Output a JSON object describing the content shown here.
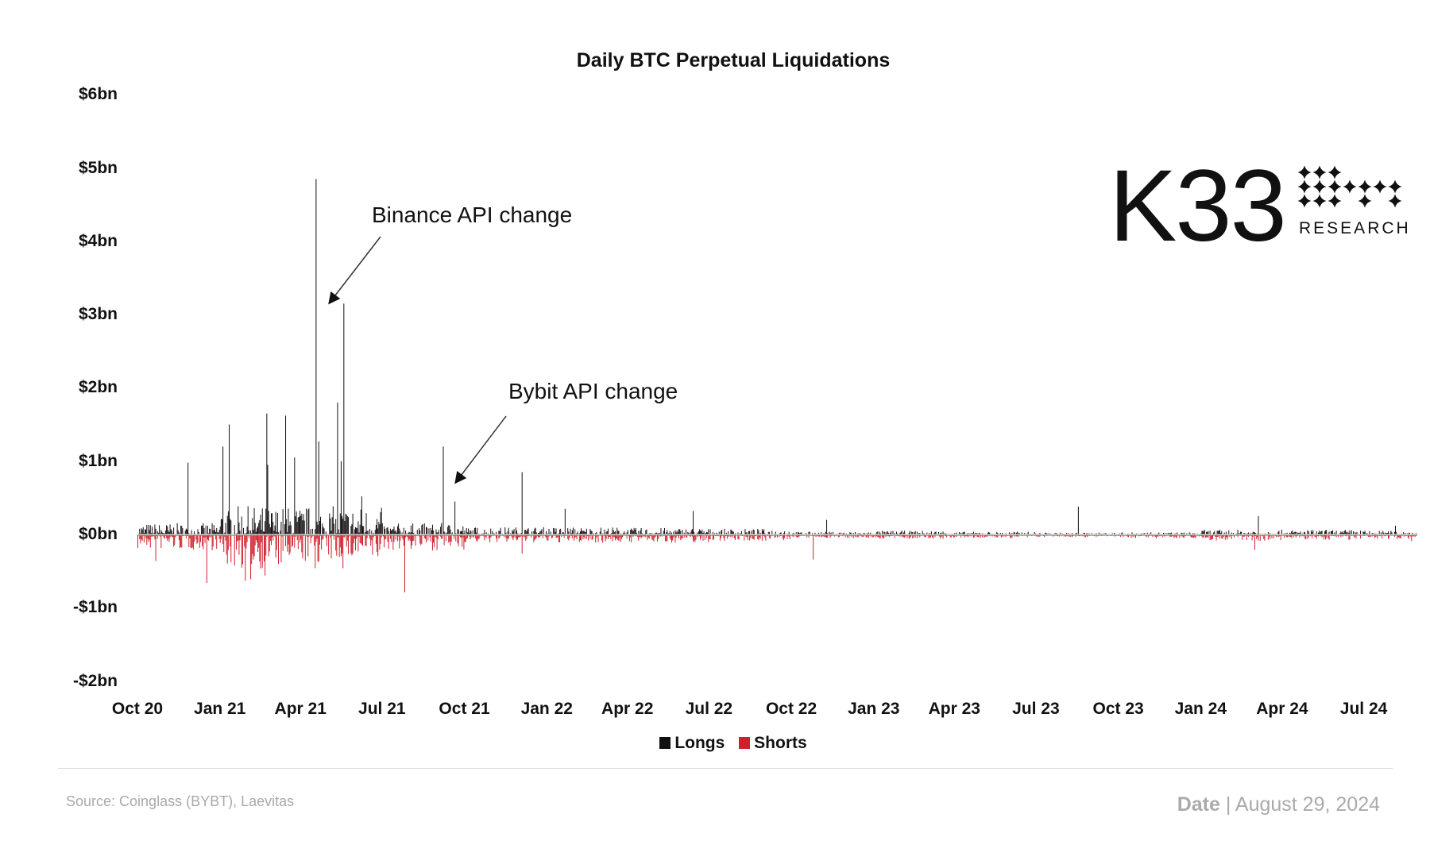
{
  "chart_data": {
    "type": "bar",
    "title": "Daily BTC Perpetual Liquidations",
    "xlabel": "",
    "ylabel": "",
    "unit": "USD billions",
    "date_range": [
      "2020-10-01",
      "2024-08-29"
    ],
    "ylim": [
      -2,
      6
    ],
    "y_ticks": [
      6,
      5,
      4,
      3,
      2,
      1,
      0,
      -1,
      -2
    ],
    "y_tick_labels": [
      "$6bn",
      "$5bn",
      "$4bn",
      "$3bn",
      "$2bn",
      "$1bn",
      "$0bn",
      "-$1bn",
      "-$2bn"
    ],
    "x_ticks": [
      "2020-10-01",
      "2021-01-01",
      "2021-04-01",
      "2021-07-01",
      "2021-10-01",
      "2022-01-01",
      "2022-04-01",
      "2022-07-01",
      "2022-10-01",
      "2023-01-01",
      "2023-04-01",
      "2023-07-01",
      "2023-10-01",
      "2024-01-01",
      "2024-04-01",
      "2024-07-01"
    ],
    "x_tick_labels": [
      "Oct 20",
      "Jan 21",
      "Apr 21",
      "Jul 21",
      "Oct 21",
      "Jan 22",
      "Apr 22",
      "Jul 22",
      "Oct 22",
      "Jan 23",
      "Apr 23",
      "Jul 23",
      "Oct 23",
      "Jan 24",
      "Apr 24",
      "Jul 24"
    ],
    "grid": false,
    "legend_position": "bottom",
    "series": [
      {
        "name": "Longs",
        "color": "#111111",
        "sign": "positive"
      },
      {
        "name": "Shorts",
        "color": "#d0202e",
        "sign": "negative"
      }
    ],
    "typical_level_by_quarter": {
      "quarters": [
        "Q4 20",
        "Q1 21",
        "Q2 21",
        "Q3 21",
        "Q4 21",
        "Q1 22",
        "Q2 22",
        "Q3 22",
        "Q4 22",
        "Q1 23",
        "Q2 23",
        "Q3 23",
        "Q4 23",
        "Q1 24",
        "Q2 24",
        "Q3 24"
      ],
      "longs": [
        0.06,
        0.15,
        0.15,
        0.06,
        0.04,
        0.04,
        0.035,
        0.03,
        0.015,
        0.02,
        0.015,
        0.01,
        0.012,
        0.025,
        0.025,
        0.02
      ],
      "shorts": [
        0.08,
        0.18,
        0.15,
        0.08,
        0.04,
        0.04,
        0.04,
        0.03,
        0.015,
        0.02,
        0.015,
        0.01,
        0.015,
        0.03,
        0.025,
        0.02
      ]
    },
    "notable_longs": [
      {
        "date": "2020-11-26",
        "value": 0.98
      },
      {
        "date": "2021-01-04",
        "value": 1.2
      },
      {
        "date": "2021-01-11",
        "value": 1.5
      },
      {
        "date": "2021-02-22",
        "value": 1.65
      },
      {
        "date": "2021-02-23",
        "value": 0.95
      },
      {
        "date": "2021-03-15",
        "value": 1.62
      },
      {
        "date": "2021-03-25",
        "value": 1.05
      },
      {
        "date": "2021-04-18",
        "value": 4.85
      },
      {
        "date": "2021-04-21",
        "value": 1.27
      },
      {
        "date": "2021-05-12",
        "value": 1.8
      },
      {
        "date": "2021-05-16",
        "value": 1.0
      },
      {
        "date": "2021-05-19",
        "value": 3.15
      },
      {
        "date": "2021-06-08",
        "value": 0.52
      },
      {
        "date": "2021-09-07",
        "value": 1.2
      },
      {
        "date": "2021-09-20",
        "value": 0.45
      },
      {
        "date": "2021-12-04",
        "value": 0.85
      },
      {
        "date": "2022-01-21",
        "value": 0.35
      },
      {
        "date": "2022-06-13",
        "value": 0.32
      },
      {
        "date": "2022-11-09",
        "value": 0.2
      },
      {
        "date": "2023-08-17",
        "value": 0.38
      },
      {
        "date": "2024-03-05",
        "value": 0.25
      },
      {
        "date": "2024-08-05",
        "value": 0.12
      }
    ],
    "notable_shorts": [
      {
        "date": "2020-10-21",
        "value": -0.35
      },
      {
        "date": "2020-12-17",
        "value": -0.65
      },
      {
        "date": "2021-01-29",
        "value": -0.62
      },
      {
        "date": "2021-02-04",
        "value": -0.6
      },
      {
        "date": "2021-02-20",
        "value": -0.55
      },
      {
        "date": "2021-04-17",
        "value": -0.45
      },
      {
        "date": "2021-05-18",
        "value": -0.45
      },
      {
        "date": "2021-07-26",
        "value": -0.78
      },
      {
        "date": "2021-12-04",
        "value": -0.25
      },
      {
        "date": "2022-10-25",
        "value": -0.33
      },
      {
        "date": "2024-03-01",
        "value": -0.2
      },
      {
        "date": "2024-08-23",
        "value": -0.08
      }
    ],
    "annotations": [
      {
        "text": "Binance API change",
        "points_to": "2021-05"
      },
      {
        "text": "Bybit API change",
        "points_to": "2021-09"
      }
    ]
  },
  "logo": {
    "text": "K33",
    "subtitle": "RESEARCH"
  },
  "footer": {
    "source": "Source:  Coinglass (BYBT), Laevitas",
    "date_label": "Date",
    "date_separator": "|",
    "date_value": "August 29, 2024"
  }
}
